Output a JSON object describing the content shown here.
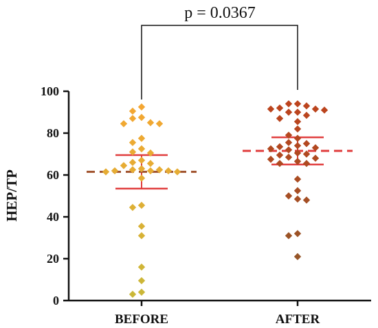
{
  "chart_data": {
    "type": "scatter",
    "ylabel": "HEP/TP",
    "ylim": [
      0,
      100
    ],
    "yticks": [
      "0",
      "20",
      "40",
      "60",
      "80",
      "100"
    ],
    "categories": [
      "BEFORE",
      "AFTER"
    ],
    "annotation": "p = 0.0367",
    "series": [
      {
        "category": "BEFORE",
        "color_top": "#f7a531",
        "color_bottom": "#c9b838",
        "mean": 61.5,
        "ci": [
          53.5,
          69.5
        ],
        "mean_line_color": "#a0522d",
        "ci_color": "#e03c3c",
        "values": [
          92.5,
          90.5,
          87,
          87.5,
          85,
          84.5,
          84.5,
          77.5,
          75.5,
          72.5,
          71,
          70.5,
          67,
          66,
          65.5,
          64.5,
          63,
          62.5,
          62,
          62,
          62,
          62.5,
          61.5,
          61.5,
          58.5,
          45.5,
          44.5,
          35.5,
          31,
          16,
          9.5,
          4,
          3
        ]
      },
      {
        "category": "AFTER",
        "color_top": "#c0421c",
        "color_bottom": "#8b5a2b",
        "mean": 71.5,
        "ci": [
          65,
          78
        ],
        "mean_line_color": "#e03c3c",
        "ci_color": "#e03c3c",
        "values": [
          94,
          94,
          93,
          92,
          91.5,
          91.5,
          91,
          90,
          90,
          88.5,
          87,
          85.5,
          82,
          79,
          77.5,
          75.5,
          75,
          74,
          73.5,
          73,
          72.5,
          72,
          70.5,
          70,
          69.5,
          68.5,
          68,
          67.5,
          66.5,
          65.5,
          65.5,
          58,
          52.5,
          50,
          48.5,
          48,
          32,
          31,
          21
        ]
      }
    ]
  }
}
